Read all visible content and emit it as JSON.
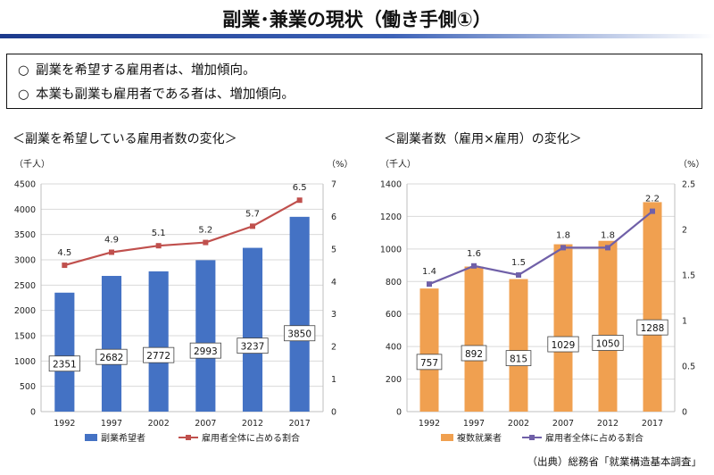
{
  "page": {
    "title": "副業･兼業の現状（働き手側①）",
    "bullets": [
      {
        "marker": "○",
        "text": "副業を希望する雇用者は、増加傾向。"
      },
      {
        "marker": "○",
        "text": "本業も副業も雇用者である者は、増加傾向。"
      }
    ],
    "source": "（出典）総務省「就業構造基本調査」"
  },
  "chart_data": [
    {
      "type": "bar",
      "title": "＜副業を希望している雇用者数の変化＞",
      "categories": [
        "1992",
        "1997",
        "2002",
        "2007",
        "2012",
        "2017"
      ],
      "left_axis_unit": "（千人）",
      "right_axis_unit": "（%）",
      "ylim_left": [
        0,
        4500
      ],
      "yticks_left": [
        "0",
        "500",
        "1000",
        "1500",
        "2000",
        "2500",
        "3000",
        "3500",
        "4000",
        "4500"
      ],
      "ylim_right": [
        0,
        7
      ],
      "yticks_right": [
        "0",
        "1",
        "2",
        "3",
        "4",
        "5",
        "6",
        "7"
      ],
      "series": [
        {
          "name": "副業希望者",
          "type": "bar",
          "axis": "left",
          "color": "#4472c4",
          "values": [
            2351,
            2682,
            2772,
            2993,
            3237,
            3850
          ],
          "labels": [
            "2351",
            "2682",
            "2772",
            "2993",
            "3237",
            "3850"
          ]
        },
        {
          "name": "雇用者全体に占める割合",
          "type": "line",
          "axis": "right",
          "color": "#c0504d",
          "values": [
            4.5,
            4.9,
            5.1,
            5.2,
            5.7,
            6.5
          ],
          "labels": [
            "4.5",
            "4.9",
            "5.1",
            "5.2",
            "5.7",
            "6.5"
          ]
        }
      ],
      "grid": true,
      "legend": "bottom"
    },
    {
      "type": "bar",
      "title": "＜副業者数（雇用×雇用）の変化＞",
      "categories": [
        "1992",
        "1997",
        "2002",
        "2007",
        "2012",
        "2017"
      ],
      "left_axis_unit": "（千人）",
      "right_axis_unit": "（%）",
      "ylim_left": [
        0,
        1400
      ],
      "yticks_left": [
        "0",
        "200",
        "400",
        "600",
        "800",
        "1000",
        "1200",
        "1400"
      ],
      "ylim_right": [
        0,
        2.5
      ],
      "yticks_right": [
        "0",
        "0.5",
        "1",
        "1.5",
        "2",
        "2.5"
      ],
      "series": [
        {
          "name": "複数就業者",
          "type": "bar",
          "axis": "left",
          "color": "#f0a050",
          "values": [
            757,
            892,
            815,
            1029,
            1050,
            1288
          ],
          "labels": [
            "757",
            "892",
            "815",
            "1029",
            "1050",
            "1288"
          ]
        },
        {
          "name": "雇用者全体に占める割合",
          "type": "line",
          "axis": "right",
          "color": "#7060a8",
          "values": [
            1.4,
            1.6,
            1.5,
            1.8,
            1.8,
            2.2
          ],
          "labels": [
            "1.4",
            "1.6",
            "1.5",
            "1.8",
            "1.8",
            "2.2"
          ]
        }
      ],
      "grid": true,
      "legend": "bottom"
    }
  ]
}
